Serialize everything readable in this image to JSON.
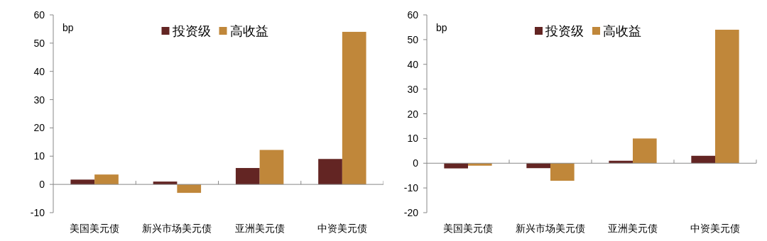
{
  "chart_data": [
    {
      "type": "bar",
      "ylabel": "bp",
      "categories": [
        "美国美元债",
        "新兴市场美元债",
        "亚洲美元债",
        "中资美元债"
      ],
      "ylim": [
        -10,
        60
      ],
      "yticks": [
        -10,
        0,
        10,
        20,
        30,
        40,
        50,
        60
      ],
      "legend": "top",
      "series": [
        {
          "name": "投资级",
          "color": "#632523",
          "values": [
            1.7,
            1.0,
            5.8,
            9
          ]
        },
        {
          "name": "高收益",
          "color": "#c0873a",
          "values": [
            3.5,
            -3,
            12.2,
            54
          ]
        }
      ]
    },
    {
      "type": "bar",
      "ylabel": "bp",
      "categories": [
        "美国美元债",
        "新兴市场美元债",
        "亚洲美元债",
        "中资美元债"
      ],
      "ylim": [
        -20,
        60
      ],
      "yticks": [
        -20,
        -10,
        0,
        10,
        20,
        30,
        40,
        50,
        60
      ],
      "legend": "top",
      "series": [
        {
          "name": "投资级",
          "color": "#632523",
          "values": [
            -2.1,
            -2,
            1,
            3
          ]
        },
        {
          "name": "高收益",
          "color": "#c0873a",
          "values": [
            -1,
            -7.1,
            10,
            54
          ]
        }
      ]
    }
  ]
}
